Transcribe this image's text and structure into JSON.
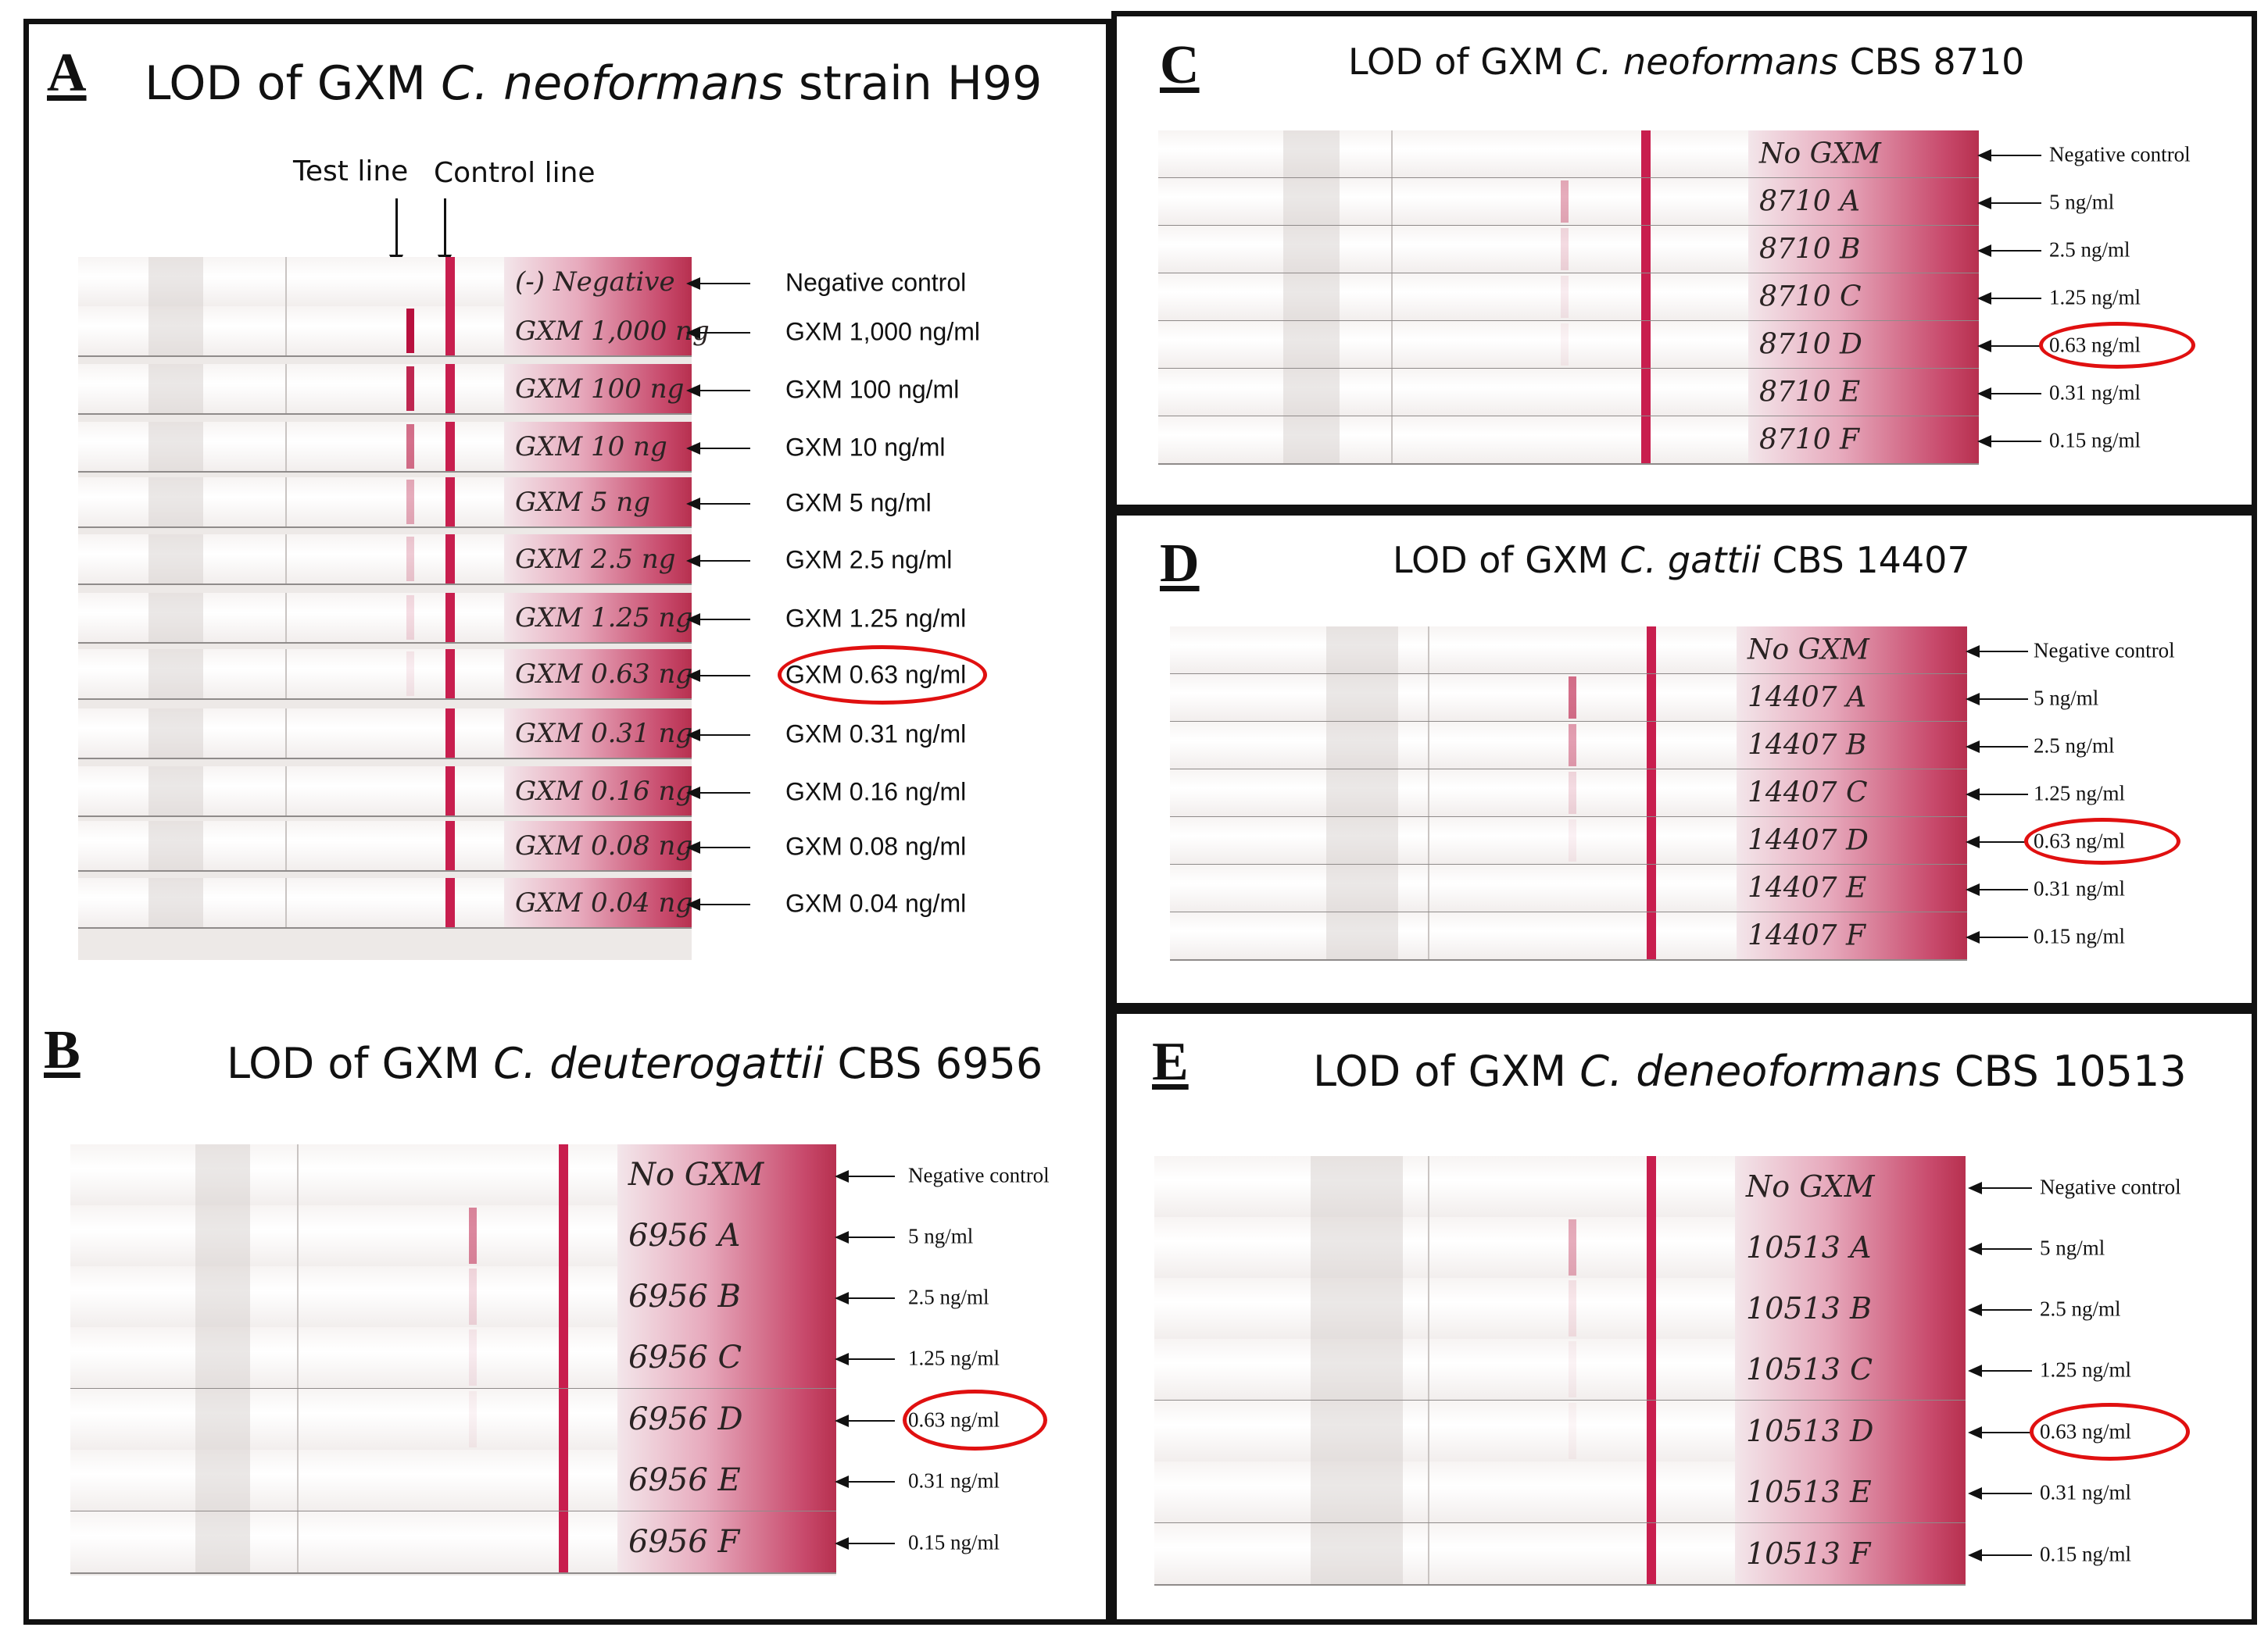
{
  "panels": {
    "A": {
      "letter": "A",
      "title_prefix": "LOD of GXM ",
      "title_species": "C. neoformans",
      "title_suffix": " strain H99",
      "test_line_label": "Test line",
      "control_line_label": "Control line",
      "labels": [
        "Negative control",
        "GXM 1,000 ng/ml",
        "GXM 100 ng/ml",
        "GXM 10 ng/ml",
        "GXM 5 ng/ml",
        "GXM 2.5 ng/ml",
        "GXM 1.25 ng/ml",
        "GXM 0.63 ng/ml",
        "GXM 0.31 ng/ml",
        "GXM 0.16 ng/ml",
        "GXM 0.08 ng/ml",
        "GXM 0.04 ng/ml"
      ],
      "strip_writing": [
        "(-) Negative",
        "GXM 1,000 ng",
        "GXM 100 ng",
        "GXM 10 ng",
        "GXM 5 ng",
        "GXM 2.5 ng",
        "GXM 1.25 ng",
        "GXM 0.63 ng",
        "GXM 0.31 ng",
        "GXM 0.16 ng",
        "GXM 0.08 ng",
        "GXM 0.04 ng"
      ],
      "test_line_intensity": [
        0,
        1.0,
        0.9,
        0.6,
        0.35,
        0.22,
        0.14,
        0.08,
        0,
        0,
        0,
        0
      ],
      "circled_index": 7
    },
    "B": {
      "letter": "B",
      "title_prefix": "LOD of GXM ",
      "title_species": "C. deuterogattii",
      "title_suffix": " CBS 6956",
      "labels": [
        "Negative control",
        "5 ng/ml",
        "2.5 ng/ml",
        "1.25 ng/ml",
        "0.63 ng/ml",
        "0.31 ng/ml",
        "0.15 ng/ml"
      ],
      "strip_writing": [
        "No GXM",
        "6956 A",
        "6956 B",
        "6956 C",
        "6956 D",
        "6956 E",
        "6956 F"
      ],
      "test_line_intensity": [
        0,
        0.5,
        0.15,
        0.08,
        0.05,
        0,
        0
      ],
      "circled_index": 4
    },
    "C": {
      "letter": "C",
      "title_prefix": "LOD of GXM ",
      "title_species": "C. neoformans",
      "title_suffix": " CBS 8710",
      "labels": [
        "Negative control",
        "5 ng/ml",
        "2.5 ng/ml",
        "1.25 ng/ml",
        "0.63 ng/ml",
        "0.31 ng/ml",
        "0.15 ng/ml"
      ],
      "strip_writing": [
        "No GXM",
        "8710 A",
        "8710 B",
        "8710 C",
        "8710 D",
        "8710 E",
        "8710 F"
      ],
      "test_line_intensity": [
        0,
        0.35,
        0.15,
        0.08,
        0.05,
        0,
        0
      ],
      "circled_index": 4
    },
    "D": {
      "letter": "D",
      "title_prefix": "LOD of GXM ",
      "title_species": "C. gattii",
      "title_suffix": " CBS 14407",
      "labels": [
        "Negative control",
        "5 ng/ml",
        "2.5 ng/ml",
        "1.25 ng/ml",
        "0.63 ng/ml",
        "0.31 ng/ml",
        "0.15 ng/ml"
      ],
      "strip_writing": [
        "No GXM",
        "14407 A",
        "14407 B",
        "14407 C",
        "14407 D",
        "14407 E",
        "14407 F"
      ],
      "test_line_intensity": [
        0,
        0.6,
        0.4,
        0.15,
        0.06,
        0,
        0
      ],
      "circled_index": 4
    },
    "E": {
      "letter": "E",
      "title_prefix": "LOD of GXM ",
      "title_species": "C. deneoformans",
      "title_suffix": " CBS 10513",
      "labels": [
        "Negative control",
        "5 ng/ml",
        "2.5 ng/ml",
        "1.25 ng/ml",
        "0.63 ng/ml",
        "0.31 ng/ml",
        "0.15 ng/ml"
      ],
      "strip_writing": [
        "No GXM",
        "10513 A",
        "10513 B",
        "10513 C",
        "10513 D",
        "10513 E",
        "10513 F"
      ],
      "test_line_intensity": [
        0,
        0.35,
        0.1,
        0.05,
        0.04,
        0,
        0
      ],
      "circled_index": 4
    }
  },
  "colors": {
    "control_line": "#c81e4e",
    "test_line": "#b8103e",
    "highlight_circle": "#e01010"
  }
}
